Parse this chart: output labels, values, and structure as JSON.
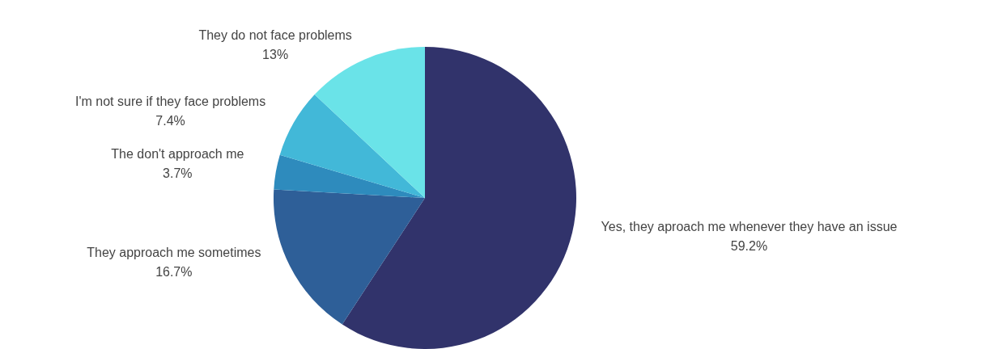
{
  "chart_data": {
    "type": "pie",
    "categories": [
      "Yes, they aproach me whenever they have an issue",
      "They approach me sometimes",
      "The don't approach me",
      "I'm not sure if they face problems",
      "They do not face problems"
    ],
    "values": [
      59.2,
      16.7,
      3.7,
      7.4,
      13
    ],
    "colors": [
      "#31336b",
      "#2e5f98",
      "#2e8bbd",
      "#42b8d8",
      "#6ae3e8"
    ],
    "value_labels": [
      "59.2%",
      "16.7%",
      "3.7%",
      "7.4%",
      "13%"
    ],
    "legend": false
  }
}
